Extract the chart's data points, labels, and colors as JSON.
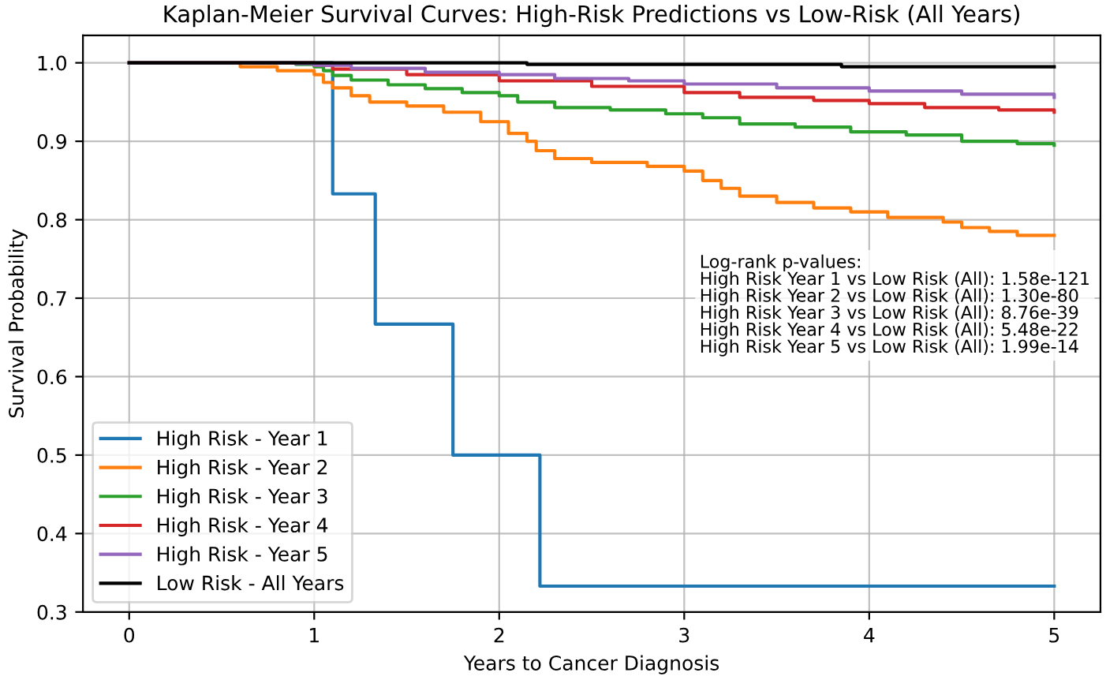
{
  "chart_data": {
    "type": "step",
    "title": "Kaplan-Meier Survival Curves: High-Risk Predictions vs Low-Risk (All Years)",
    "xlabel": "Years to Cancer Diagnosis",
    "ylabel": "Survival Probability",
    "series": [
      {
        "name": "High Risk - Year 1",
        "color": "#1f77b4",
        "x": [
          0,
          1.1,
          1.33,
          1.75,
          2.22,
          5
        ],
        "values": [
          1.0,
          0.833,
          0.667,
          0.5,
          0.333,
          0.333
        ]
      },
      {
        "name": "High Risk - Year 2",
        "color": "#ff7f0e",
        "x": [
          0,
          0.6,
          0.8,
          1.0,
          1.05,
          1.1,
          1.2,
          1.3,
          1.5,
          1.7,
          1.9,
          2.05,
          2.15,
          2.2,
          2.3,
          2.5,
          2.8,
          3.0,
          3.1,
          3.2,
          3.3,
          3.5,
          3.7,
          3.9,
          4.1,
          4.4,
          4.5,
          4.65,
          4.8,
          5.0
        ],
        "values": [
          1.0,
          0.995,
          0.99,
          0.985,
          0.975,
          0.968,
          0.958,
          0.95,
          0.945,
          0.937,
          0.925,
          0.91,
          0.9,
          0.888,
          0.878,
          0.873,
          0.868,
          0.862,
          0.85,
          0.84,
          0.83,
          0.822,
          0.815,
          0.81,
          0.803,
          0.797,
          0.79,
          0.785,
          0.78,
          0.78
        ]
      },
      {
        "name": "High Risk - Year 3",
        "color": "#2ca02c",
        "x": [
          0,
          0.9,
          1.0,
          1.05,
          1.1,
          1.2,
          1.4,
          1.6,
          1.8,
          2.0,
          2.1,
          2.3,
          2.6,
          2.9,
          3.1,
          3.3,
          3.6,
          3.9,
          4.2,
          4.5,
          4.8,
          5.0
        ],
        "values": [
          1.0,
          0.998,
          0.995,
          0.99,
          0.984,
          0.978,
          0.972,
          0.967,
          0.962,
          0.958,
          0.95,
          0.943,
          0.94,
          0.935,
          0.93,
          0.922,
          0.918,
          0.912,
          0.908,
          0.9,
          0.897,
          0.895
        ]
      },
      {
        "name": "High Risk - Year 4",
        "color": "#d62728",
        "x": [
          0,
          1.0,
          1.1,
          1.5,
          2.0,
          2.5,
          3.0,
          3.3,
          3.7,
          4.0,
          4.3,
          4.7,
          5.0
        ],
        "values": [
          1.0,
          0.997,
          0.992,
          0.985,
          0.977,
          0.97,
          0.962,
          0.956,
          0.952,
          0.948,
          0.943,
          0.94,
          0.937
        ]
      },
      {
        "name": "High Risk - Year 5",
        "color": "#9467bd",
        "x": [
          0,
          0.9,
          1.0,
          1.2,
          1.6,
          2.0,
          2.3,
          2.7,
          3.0,
          3.5,
          4.0,
          4.5,
          5.0
        ],
        "values": [
          1.0,
          0.999,
          0.997,
          0.993,
          0.988,
          0.985,
          0.98,
          0.977,
          0.973,
          0.968,
          0.964,
          0.96,
          0.956
        ]
      },
      {
        "name": "Low Risk - All Years",
        "color": "#000000",
        "x": [
          0,
          2.15,
          3.85,
          5.0
        ],
        "values": [
          1.0,
          0.998,
          0.995,
          0.995
        ]
      }
    ],
    "xlim": [
      -0.25,
      5.25
    ],
    "ylim": [
      0.3,
      1.035
    ],
    "xticks": [
      0,
      1,
      2,
      3,
      4,
      5
    ],
    "yticks": [
      0.3,
      0.4,
      0.5,
      0.6,
      0.7,
      0.8,
      0.9,
      {
        "value": 1,
        "label": "1.0"
      }
    ],
    "grid": true,
    "legend": "bottom left",
    "marker": "none",
    "line_style": "solid",
    "annotations": [
      "Log-rank p-values:\nHigh Risk Year 1 vs Low Risk (All): 1.58e-121\nHigh Risk Year 2 vs Low Risk (All): 1.30e-80\nHigh Risk Year 3 vs Low Risk (All): 8.76e-39\nHigh Risk Year 4 vs Low Risk (All): 5.48e-22\nHigh Risk Year 5 vs Low Risk (All): 1.99e-14"
    ]
  }
}
